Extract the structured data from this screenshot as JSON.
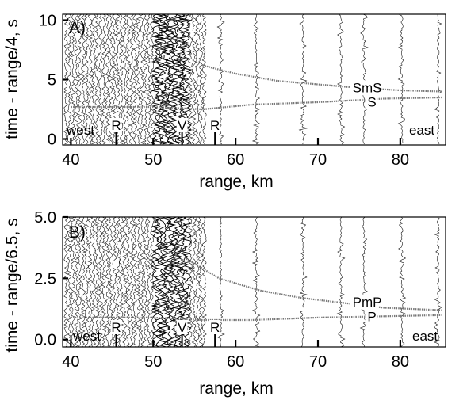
{
  "figure": {
    "panels": [
      {
        "id": "A",
        "letter": "A)",
        "ylabel": "time - range/4, s",
        "xlabel": "range, km",
        "xticks": [
          40,
          50,
          60,
          70,
          80
        ],
        "yticks": [
          0,
          5,
          10
        ],
        "xlim": [
          39,
          85.5
        ],
        "ylim": [
          -0.5,
          10.5
        ],
        "dir_west": "west",
        "dir_east": "east",
        "markers": [
          {
            "text": "R",
            "x": 45.5
          },
          {
            "text": "V",
            "x": 53.5
          },
          {
            "text": "R",
            "x": 57.5
          }
        ],
        "phases": [
          {
            "label": "SmS",
            "x": [
              56,
              60,
              65,
              70,
              75,
              80,
              85
            ],
            "y": [
              6.2,
              5.5,
              4.9,
              4.6,
              4.3,
              4.1,
              4.0
            ]
          },
          {
            "label": "S",
            "x": [
              40,
              50,
              56,
              62,
              70,
              78,
              85
            ],
            "y": [
              2.7,
              2.7,
              2.5,
              2.9,
              3.1,
              3.4,
              3.5
            ]
          }
        ]
      },
      {
        "id": "B",
        "letter": "B)",
        "ylabel": "time - range/6.5, s",
        "xlabel": "range, km",
        "xticks": [
          40,
          50,
          60,
          70,
          80
        ],
        "yticks": [
          "0.0",
          "2.5",
          "5.0"
        ],
        "xlim": [
          39,
          85.5
        ],
        "ylim": [
          -0.3,
          5.0
        ],
        "dir_west": "west",
        "dir_east": "east",
        "markers": [
          {
            "text": "R",
            "x": 45.5
          },
          {
            "text": "V",
            "x": 53.5
          },
          {
            "text": "R",
            "x": 57.5
          }
        ],
        "phases": [
          {
            "label": "PmP",
            "x": [
              54,
              58,
              63,
              68,
              73,
              78,
              85
            ],
            "y": [
              3.3,
              2.5,
              2.0,
              1.7,
              1.5,
              1.3,
              1.2
            ]
          },
          {
            "label": "P",
            "x": [
              40,
              50,
              56,
              62,
              70,
              78,
              85
            ],
            "y": [
              0.9,
              0.9,
              0.8,
              0.8,
              0.9,
              0.95,
              1.0
            ]
          }
        ]
      }
    ]
  }
}
